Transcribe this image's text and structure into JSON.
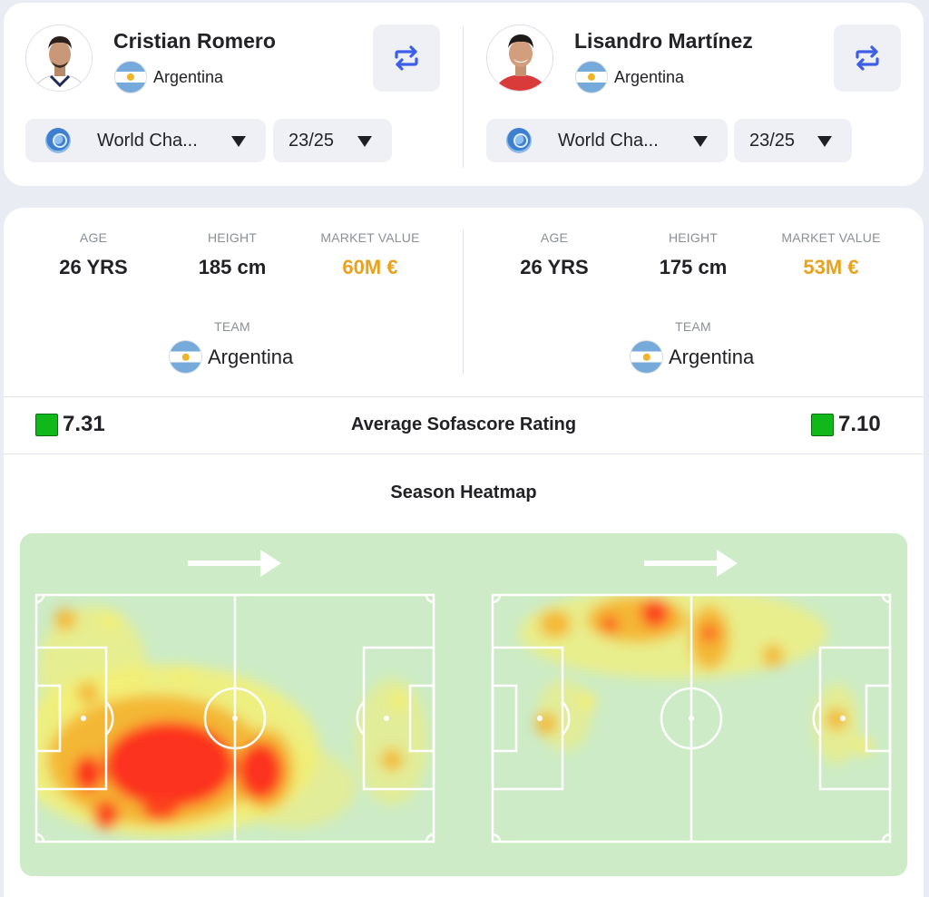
{
  "players": [
    {
      "name": "Cristian Romero",
      "nationality": "Argentina",
      "competition": "World Cha...",
      "season": "23/25",
      "age_label": "AGE",
      "age": "26 YRS",
      "height_label": "HEIGHT",
      "height": "185 cm",
      "market_label": "MARKET VALUE",
      "market_value": "60M €",
      "team_label": "TEAM",
      "team": "Argentina",
      "rating": "7.31"
    },
    {
      "name": "Lisandro Martínez",
      "nationality": "Argentina",
      "competition": "World Cha...",
      "season": "23/25",
      "age_label": "AGE",
      "age": "26 YRS",
      "height_label": "HEIGHT",
      "height": "175 cm",
      "market_label": "MARKET VALUE",
      "market_value": "53M €",
      "team_label": "TEAM",
      "team": "Argentina",
      "rating": "7.10"
    }
  ],
  "rating_title": "Average Sofascore Rating",
  "heatmap_title": "Season Heatmap",
  "colors": {
    "market_value": "#e9a21c",
    "rating_badge": "#10b81a",
    "pitch": "#ccebc6",
    "swap_icon": "#3c5ee8"
  },
  "icons": {
    "swap": "swap-arrows-icon",
    "competition": "world-championship-icon",
    "caret": "caret-down-icon",
    "flag": "argentina-flag-icon",
    "direction": "attack-direction-arrow-icon"
  }
}
